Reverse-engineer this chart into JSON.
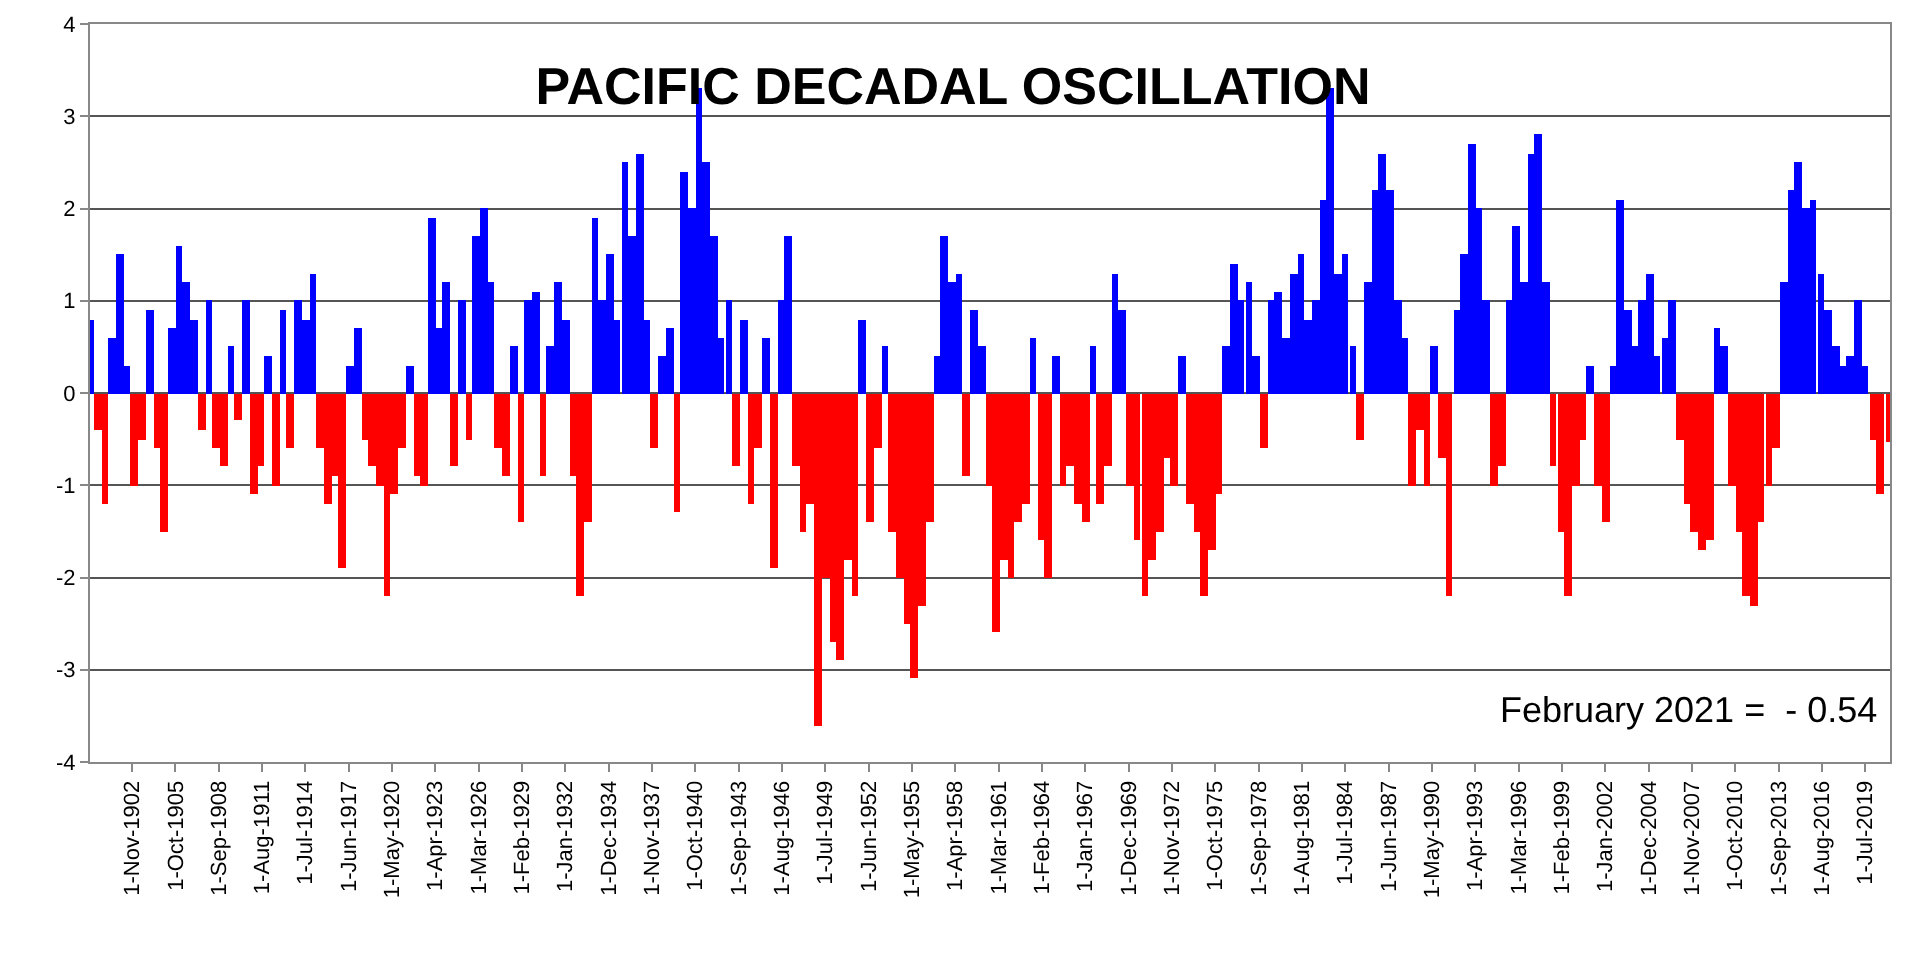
{
  "chart_data": {
    "type": "bar",
    "title": "PACIFIC DECADAL OSCILLATION",
    "annotations": [
      "February 2021 =  - 0.54"
    ],
    "xlim": [
      "1900-01",
      "2021-03"
    ],
    "ylim": [
      -4,
      4
    ],
    "yticks": [
      -4,
      -3,
      -2,
      -1,
      0,
      1,
      2,
      3,
      4
    ],
    "grid": "y",
    "xticks": [
      {
        "value": "1902-11-01",
        "label": "1-Nov-1902"
      },
      {
        "value": "1905-10-01",
        "label": "1-Oct-1905"
      },
      {
        "value": "1908-09-01",
        "label": "1-Sep-1908"
      },
      {
        "value": "1911-08-01",
        "label": "1-Aug-1911"
      },
      {
        "value": "1914-07-01",
        "label": "1-Jul-1914"
      },
      {
        "value": "1917-06-01",
        "label": "1-Jun-1917"
      },
      {
        "value": "1920-05-01",
        "label": "1-May-1920"
      },
      {
        "value": "1923-04-01",
        "label": "1-Apr-1923"
      },
      {
        "value": "1926-03-01",
        "label": "1-Mar-1926"
      },
      {
        "value": "1929-02-01",
        "label": "1-Feb-1929"
      },
      {
        "value": "1932-01-01",
        "label": "1-Jan-1932"
      },
      {
        "value": "1934-12-01",
        "label": "1-Dec-1934"
      },
      {
        "value": "1937-11-01",
        "label": "1-Nov-1937"
      },
      {
        "value": "1940-10-01",
        "label": "1-Oct-1940"
      },
      {
        "value": "1943-09-01",
        "label": "1-Sep-1943"
      },
      {
        "value": "1946-08-01",
        "label": "1-Aug-1946"
      },
      {
        "value": "1949-07-01",
        "label": "1-Jul-1949"
      },
      {
        "value": "1952-06-01",
        "label": "1-Jun-1952"
      },
      {
        "value": "1955-05-01",
        "label": "1-May-1955"
      },
      {
        "value": "1958-04-01",
        "label": "1-Apr-1958"
      },
      {
        "value": "1961-03-01",
        "label": "1-Mar-1961"
      },
      {
        "value": "1964-02-01",
        "label": "1-Feb-1964"
      },
      {
        "value": "1967-01-01",
        "label": "1-Jan-1967"
      },
      {
        "value": "1969-12-01",
        "label": "1-Dec-1969"
      },
      {
        "value": "1972-11-01",
        "label": "1-Nov-1972"
      },
      {
        "value": "1975-10-01",
        "label": "1-Oct-1975"
      },
      {
        "value": "1978-09-01",
        "label": "1-Sep-1978"
      },
      {
        "value": "1981-08-01",
        "label": "1-Aug-1981"
      },
      {
        "value": "1984-07-01",
        "label": "1-Jul-1984"
      },
      {
        "value": "1987-06-01",
        "label": "1-Jun-1987"
      },
      {
        "value": "1990-05-01",
        "label": "1-May-1990"
      },
      {
        "value": "1993-04-01",
        "label": "1-Apr-1993"
      },
      {
        "value": "1996-03-01",
        "label": "1-Mar-1996"
      },
      {
        "value": "1999-02-01",
        "label": "1-Feb-1999"
      },
      {
        "value": "2002-01-01",
        "label": "1-Jan-2002"
      },
      {
        "value": "2004-12-01",
        "label": "1-Dec-2004"
      },
      {
        "value": "2007-11-01",
        "label": "1-Nov-2007"
      },
      {
        "value": "2010-10-01",
        "label": "1-Oct-2010"
      },
      {
        "value": "2013-09-01",
        "label": "1-Sep-2013"
      },
      {
        "value": "2016-08-01",
        "label": "1-Aug-2016"
      },
      {
        "value": "2019-07-01",
        "label": "1-Jul-2019"
      }
    ],
    "series": [
      {
        "color": "#0000ff",
        "x": [
          "1900-01",
          "1901-07",
          "1902-01",
          "1902-07",
          "1904-01",
          "1905-07",
          "1906-01",
          "1906-07",
          "1907-01",
          "1908-01",
          "1909-07",
          "1910-07",
          "1912-01",
          "1913-01",
          "1914-01",
          "1914-07",
          "1915-01",
          "1917-07",
          "1918-01",
          "1921-07",
          "1923-01",
          "1923-07",
          "1924-01",
          "1925-01",
          "1926-01",
          "1926-07",
          "1927-01",
          "1928-07",
          "1929-07",
          "1930-01",
          "1931-01",
          "1931-07",
          "1932-01",
          "1934-01",
          "1934-07",
          "1935-01",
          "1935-07",
          "1936-01",
          "1936-07",
          "1937-01",
          "1937-07",
          "1938-07",
          "1939-01",
          "1940-01",
          "1940-07",
          "1941-01",
          "1941-07",
          "1942-01",
          "1942-07",
          "1943-01",
          "1944-01",
          "1945-07",
          "1946-07",
          "1947-01",
          "1952-01",
          "1953-07",
          "1957-01",
          "1957-07",
          "1958-01",
          "1958-07",
          "1959-07",
          "1960-01",
          "1963-07",
          "1965-01",
          "1967-07",
          "1969-01",
          "1969-07",
          "1973-07",
          "1976-07",
          "1977-01",
          "1977-07",
          "1978-01",
          "1978-07",
          "1979-07",
          "1980-01",
          "1980-07",
          "1981-01",
          "1981-07",
          "1982-01",
          "1982-07",
          "1983-01",
          "1983-07",
          "1984-01",
          "1984-07",
          "1985-01",
          "1986-01",
          "1986-07",
          "1987-01",
          "1987-07",
          "1988-01",
          "1988-07",
          "1990-07",
          "1992-01",
          "1992-07",
          "1993-01",
          "1993-07",
          "1994-01",
          "1995-07",
          "1996-01",
          "1996-07",
          "1997-01",
          "1997-07",
          "1998-01",
          "2001-01",
          "2002-07",
          "2003-01",
          "2003-07",
          "2004-01",
          "2004-07",
          "2005-01",
          "2005-07",
          "2006-01",
          "2006-07",
          "2009-07",
          "2010-01",
          "2014-01",
          "2014-07",
          "2015-01",
          "2015-07",
          "2016-01",
          "2016-07",
          "2017-01",
          "2017-07",
          "2018-01",
          "2018-07",
          "2019-01",
          "2019-07"
        ],
        "values": [
          0.8,
          0.6,
          1.5,
          0.3,
          0.9,
          0.7,
          1.6,
          1.2,
          0.8,
          1.0,
          0.5,
          1.0,
          0.4,
          0.9,
          1.0,
          0.8,
          1.3,
          0.3,
          0.7,
          0.3,
          1.9,
          0.7,
          1.2,
          1.0,
          1.7,
          2.0,
          1.2,
          0.5,
          1.0,
          1.1,
          0.5,
          1.2,
          0.8,
          1.9,
          1.0,
          1.5,
          0.8,
          2.5,
          1.7,
          2.6,
          0.8,
          0.4,
          0.7,
          2.4,
          2.0,
          3.3,
          2.5,
          1.7,
          0.6,
          1.0,
          0.8,
          0.6,
          1.0,
          1.7,
          0.8,
          0.5,
          0.4,
          1.7,
          1.2,
          1.3,
          0.9,
          0.5,
          0.6,
          0.4,
          0.5,
          1.3,
          0.9,
          0.4,
          0.5,
          1.4,
          1.0,
          1.2,
          0.4,
          1.0,
          1.1,
          0.6,
          1.3,
          1.5,
          0.8,
          1.0,
          2.1,
          3.3,
          1.3,
          1.5,
          0.5,
          1.2,
          2.2,
          2.6,
          2.2,
          1.0,
          0.6,
          0.5,
          0.9,
          1.5,
          2.7,
          2.0,
          1.0,
          1.0,
          1.8,
          1.2,
          2.6,
          2.8,
          1.2,
          0.3,
          0.3,
          2.1,
          0.9,
          0.5,
          1.0,
          1.3,
          0.4,
          0.6,
          1.0,
          0.7,
          0.5,
          1.2,
          2.2,
          2.5,
          2.0,
          2.1,
          1.3,
          0.9,
          0.5,
          0.3,
          0.4,
          1.0,
          0.3
        ]
      },
      {
        "color": "#ff0000",
        "x": [
          "1900-07",
          "1901-01",
          "1903-01",
          "1903-07",
          "1904-07",
          "1905-01",
          "1907-07",
          "1908-07",
          "1909-01",
          "1910-01",
          "1911-01",
          "1911-07",
          "1912-07",
          "1913-07",
          "1915-07",
          "1916-01",
          "1916-07",
          "1917-01",
          "1918-07",
          "1919-01",
          "1919-07",
          "1920-01",
          "1920-07",
          "1921-01",
          "1922-01",
          "1922-07",
          "1924-07",
          "1925-07",
          "1927-07",
          "1928-01",
          "1929-01",
          "1930-07",
          "1932-07",
          "1933-01",
          "1933-07",
          "1938-01",
          "1939-07",
          "1943-07",
          "1944-07",
          "1945-01",
          "1946-01",
          "1947-07",
          "1948-01",
          "1948-07",
          "1949-01",
          "1949-07",
          "1950-01",
          "1950-07",
          "1951-01",
          "1951-07",
          "1952-07",
          "1953-01",
          "1954-01",
          "1954-07",
          "1955-01",
          "1955-07",
          "1956-01",
          "1956-07",
          "1959-01",
          "1960-07",
          "1961-01",
          "1961-07",
          "1962-01",
          "1962-07",
          "1963-01",
          "1964-01",
          "1964-07",
          "1965-07",
          "1966-01",
          "1966-07",
          "1967-01",
          "1968-01",
          "1968-07",
          "1970-01",
          "1970-07",
          "1971-01",
          "1971-07",
          "1972-01",
          "1972-07",
          "1973-01",
          "1974-01",
          "1974-07",
          "1975-01",
          "1975-07",
          "1976-01",
          "1979-01",
          "1985-07",
          "1989-01",
          "1989-07",
          "1990-01",
          "1991-01",
          "1991-07",
          "1994-07",
          "1995-01",
          "1998-07",
          "1999-01",
          "1999-07",
          "2000-01",
          "2000-07",
          "2001-07",
          "2002-01",
          "2007-01",
          "2007-07",
          "2008-01",
          "2008-07",
          "2009-01",
          "2010-07",
          "2011-01",
          "2011-07",
          "2012-01",
          "2012-07",
          "2013-01",
          "2013-07",
          "2020-01",
          "2020-07",
          "2021-02"
        ],
        "values": [
          -0.4,
          -1.2,
          -1.0,
          -0.5,
          -0.6,
          -1.5,
          -0.4,
          -0.6,
          -0.8,
          -0.3,
          -1.1,
          -0.8,
          -1.0,
          -0.6,
          -0.6,
          -1.2,
          -0.9,
          -1.9,
          -0.5,
          -0.8,
          -1.0,
          -2.2,
          -1.1,
          -0.6,
          -0.9,
          -1.0,
          -0.8,
          -0.5,
          -0.6,
          -0.9,
          -1.4,
          -0.9,
          -0.9,
          -2.2,
          -1.4,
          -0.6,
          -1.3,
          -0.8,
          -1.2,
          -0.6,
          -1.9,
          -0.8,
          -1.5,
          -1.2,
          -3.6,
          -2.0,
          -2.7,
          -2.9,
          -1.8,
          -2.2,
          -1.4,
          -0.6,
          -1.5,
          -2.0,
          -2.5,
          -3.1,
          -2.3,
          -1.4,
          -0.9,
          -1.0,
          -2.6,
          -1.8,
          -2.0,
          -1.4,
          -1.2,
          -1.6,
          -2.0,
          -1.0,
          -0.8,
          -1.2,
          -1.4,
          -1.2,
          -0.8,
          -1.0,
          -1.6,
          -2.2,
          -1.8,
          -1.5,
          -0.7,
          -1.0,
          -1.2,
          -1.5,
          -2.2,
          -1.7,
          -1.1,
          -0.6,
          -0.5,
          -1.0,
          -0.4,
          -1.0,
          -0.7,
          -2.2,
          -1.0,
          -0.8,
          -0.8,
          -1.5,
          -2.2,
          -1.0,
          -0.5,
          -1.0,
          -1.4,
          -0.5,
          -1.2,
          -1.5,
          -1.7,
          -1.6,
          -1.0,
          -1.5,
          -2.2,
          -2.3,
          -1.4,
          -1.0,
          -0.6,
          -0.5,
          -1.1,
          -0.54
        ]
      }
    ]
  }
}
